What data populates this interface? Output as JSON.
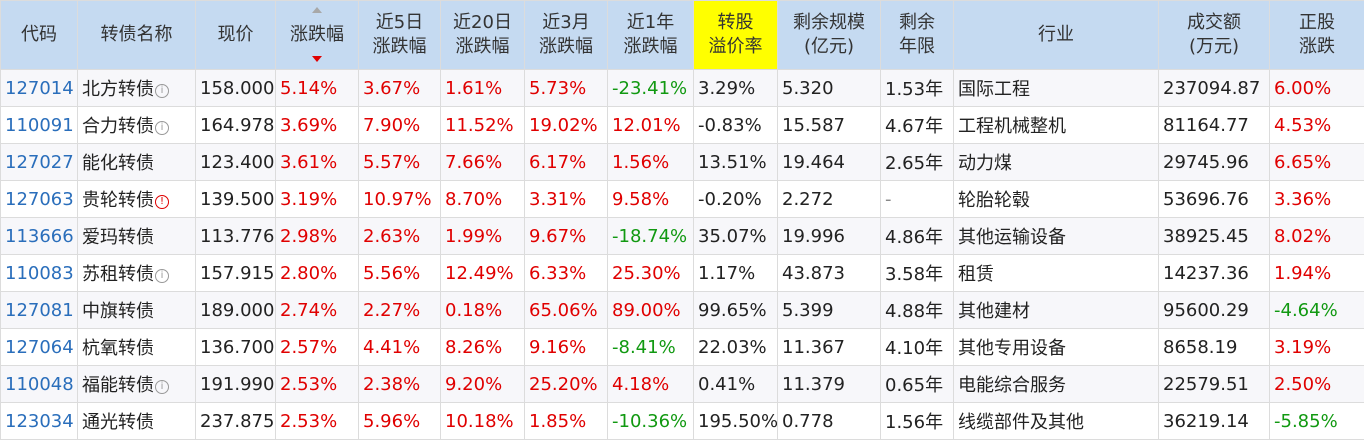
{
  "headers": [
    [
      "代码"
    ],
    [
      "转债名称"
    ],
    [
      "现价"
    ],
    [
      "涨跌幅"
    ],
    [
      "近5日",
      "涨跌幅"
    ],
    [
      "近20日",
      "涨跌幅"
    ],
    [
      "近3月",
      "涨跌幅"
    ],
    [
      "近1年",
      "涨跌幅"
    ],
    [
      "转股",
      "溢价率"
    ],
    [
      "剩余规模",
      "(亿元)"
    ],
    [
      "剩余",
      "年限"
    ],
    [
      "行业"
    ],
    [
      "成交额",
      "(万元)"
    ],
    [
      "正股",
      "涨跌"
    ]
  ],
  "colors": {
    "header_bg": "#c5daf1",
    "header_highlight": "#ffff00",
    "up": "#e00000",
    "down": "#119911",
    "code_link": "#2a6ebb"
  },
  "rows": [
    {
      "code": "127014",
      "name": "北方转债",
      "info": "info",
      "price": "158.000",
      "chg": "5.14%",
      "d5": "3.67%",
      "d20": "1.61%",
      "m3": "5.73%",
      "y1": "-23.41%",
      "premium": "3.29%",
      "scale": "5.320",
      "years": "1.53年",
      "industry": "国际工程",
      "turnover": "237094.87",
      "stock_chg": "6.00%"
    },
    {
      "code": "110091",
      "name": "合力转债",
      "info": "info",
      "price": "164.978",
      "chg": "3.69%",
      "d5": "7.90%",
      "d20": "11.52%",
      "m3": "19.02%",
      "y1": "12.01%",
      "premium": "-0.83%",
      "scale": "15.587",
      "years": "4.67年",
      "industry": "工程机械整机",
      "turnover": "81164.77",
      "stock_chg": "4.53%"
    },
    {
      "code": "127027",
      "name": "能化转债",
      "info": "",
      "price": "123.400",
      "chg": "3.61%",
      "d5": "5.57%",
      "d20": "7.66%",
      "m3": "6.17%",
      "y1": "1.56%",
      "premium": "13.51%",
      "scale": "19.464",
      "years": "2.65年",
      "industry": "动力煤",
      "turnover": "29745.96",
      "stock_chg": "6.65%"
    },
    {
      "code": "127063",
      "name": "贵轮转债",
      "info": "warn",
      "price": "139.500",
      "chg": "3.19%",
      "d5": "10.97%",
      "d20": "8.70%",
      "m3": "3.31%",
      "y1": "9.58%",
      "premium": "-0.20%",
      "scale": "2.272",
      "years": "-",
      "industry": "轮胎轮毂",
      "turnover": "53696.76",
      "stock_chg": "3.36%"
    },
    {
      "code": "113666",
      "name": "爱玛转债",
      "info": "",
      "price": "113.776",
      "chg": "2.98%",
      "d5": "2.63%",
      "d20": "1.99%",
      "m3": "9.67%",
      "y1": "-18.74%",
      "premium": "35.07%",
      "scale": "19.996",
      "years": "4.86年",
      "industry": "其他运输设备",
      "turnover": "38925.45",
      "stock_chg": "8.02%"
    },
    {
      "code": "110083",
      "name": "苏租转债",
      "info": "info",
      "price": "157.915",
      "chg": "2.80%",
      "d5": "5.56%",
      "d20": "12.49%",
      "m3": "6.33%",
      "y1": "25.30%",
      "premium": "1.17%",
      "scale": "43.873",
      "years": "3.58年",
      "industry": "租赁",
      "turnover": "14237.36",
      "stock_chg": "1.94%"
    },
    {
      "code": "127081",
      "name": "中旗转债",
      "info": "",
      "price": "189.000",
      "chg": "2.74%",
      "d5": "2.27%",
      "d20": "0.18%",
      "m3": "65.06%",
      "y1": "89.00%",
      "premium": "99.65%",
      "scale": "5.399",
      "years": "4.88年",
      "industry": "其他建材",
      "turnover": "95600.29",
      "stock_chg": "-4.64%"
    },
    {
      "code": "127064",
      "name": "杭氧转债",
      "info": "",
      "price": "136.700",
      "chg": "2.57%",
      "d5": "4.41%",
      "d20": "8.26%",
      "m3": "9.16%",
      "y1": "-8.41%",
      "premium": "22.03%",
      "scale": "11.367",
      "years": "4.10年",
      "industry": "其他专用设备",
      "turnover": "8658.19",
      "stock_chg": "3.19%"
    },
    {
      "code": "110048",
      "name": "福能转债",
      "info": "info",
      "price": "191.990",
      "chg": "2.53%",
      "d5": "2.38%",
      "d20": "9.20%",
      "m3": "25.20%",
      "y1": "4.18%",
      "premium": "0.41%",
      "scale": "11.379",
      "years": "0.65年",
      "industry": "电能综合服务",
      "turnover": "22579.51",
      "stock_chg": "2.50%"
    },
    {
      "code": "123034",
      "name": "通光转债",
      "info": "",
      "price": "237.875",
      "chg": "2.53%",
      "d5": "5.96%",
      "d20": "10.18%",
      "m3": "1.85%",
      "y1": "-10.36%",
      "premium": "195.50%",
      "scale": "0.778",
      "years": "1.56年",
      "industry": "线缆部件及其他",
      "turnover": "36219.14",
      "stock_chg": "-5.85%"
    }
  ]
}
